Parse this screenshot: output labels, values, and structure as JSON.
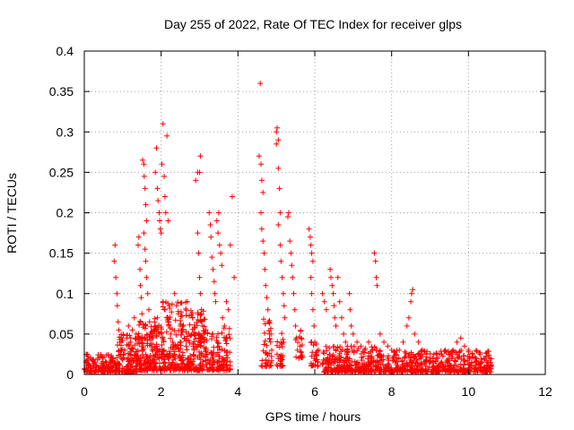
{
  "chart_data": {
    "type": "scatter",
    "title": "Day 255 of 2022, Rate Of TEC Index for receiver glps",
    "xlabel": "GPS time / hours",
    "ylabel": "ROTI / TECUs",
    "xlim": [
      0,
      12
    ],
    "ylim": [
      0,
      0.4
    ],
    "x_ticks": [
      0,
      2,
      4,
      6,
      8,
      10,
      12
    ],
    "y_ticks": [
      0,
      0.05,
      0.1,
      0.15,
      0.2,
      0.25,
      0.3,
      0.35,
      0.4
    ],
    "x_tick_labels": [
      "0",
      "2",
      "4",
      "6",
      "8",
      "10",
      "12"
    ],
    "y_tick_labels": [
      "0",
      "0.05",
      "0.1",
      "0.15",
      "0.2",
      "0.25",
      "0.3",
      "0.35",
      "0.4"
    ],
    "grid": true,
    "marker": "plus",
    "color": "#ff0000",
    "points": [
      [
        0.05,
        0.015
      ],
      [
        0.1,
        0.022
      ],
      [
        0.15,
        0.01
      ],
      [
        0.2,
        0.018
      ],
      [
        0.25,
        0.008
      ],
      [
        0.3,
        0.012
      ],
      [
        0.35,
        0.02
      ],
      [
        0.4,
        0.006
      ],
      [
        0.45,
        0.014
      ],
      [
        0.5,
        0.01
      ],
      [
        0.55,
        0.016
      ],
      [
        0.6,
        0.009
      ],
      [
        0.65,
        0.013
      ],
      [
        0.7,
        0.02
      ],
      [
        0.75,
        0.011
      ],
      [
        0.78,
        0.14
      ],
      [
        0.8,
        0.16
      ],
      [
        0.82,
        0.12
      ],
      [
        0.85,
        0.1
      ],
      [
        0.86,
        0.085
      ],
      [
        0.88,
        0.065
      ],
      [
        0.9,
        0.055
      ],
      [
        0.92,
        0.04
      ],
      [
        0.95,
        0.03
      ],
      [
        0.98,
        0.02
      ],
      [
        1.0,
        0.018
      ],
      [
        1.05,
        0.03
      ],
      [
        1.1,
        0.045
      ],
      [
        1.15,
        0.06
      ],
      [
        1.2,
        0.04
      ],
      [
        1.25,
        0.055
      ],
      [
        1.3,
        0.07
      ],
      [
        1.35,
        0.05
      ],
      [
        1.4,
        0.16
      ],
      [
        1.42,
        0.17
      ],
      [
        1.45,
        0.13
      ],
      [
        1.46,
        0.11
      ],
      [
        1.48,
        0.095
      ],
      [
        1.5,
        0.075
      ],
      [
        1.52,
        0.265
      ],
      [
        1.55,
        0.26
      ],
      [
        1.56,
        0.245
      ],
      [
        1.58,
        0.23
      ],
      [
        1.6,
        0.21
      ],
      [
        1.62,
        0.19
      ],
      [
        1.55,
        0.175
      ],
      [
        1.58,
        0.155
      ],
      [
        1.6,
        0.14
      ],
      [
        1.62,
        0.12
      ],
      [
        1.65,
        0.1
      ],
      [
        1.68,
        0.08
      ],
      [
        1.7,
        0.065
      ],
      [
        1.72,
        0.05
      ],
      [
        1.75,
        0.045
      ],
      [
        1.8,
        0.055
      ],
      [
        1.85,
        0.06
      ],
      [
        1.9,
        0.07
      ],
      [
        1.95,
        0.05
      ],
      [
        1.85,
        0.25
      ],
      [
        1.88,
        0.28
      ],
      [
        1.9,
        0.23
      ],
      [
        1.92,
        0.215
      ],
      [
        1.95,
        0.2
      ],
      [
        1.96,
        0.19
      ],
      [
        1.98,
        0.18
      ],
      [
        2.0,
        0.175
      ],
      [
        2.02,
        0.26
      ],
      [
        2.05,
        0.31
      ],
      [
        2.08,
        0.245
      ],
      [
        2.1,
        0.22
      ],
      [
        2.12,
        0.2
      ],
      [
        2.15,
        0.295
      ],
      [
        2.18,
        0.19
      ],
      [
        2.05,
        0.09
      ],
      [
        2.1,
        0.08
      ],
      [
        2.15,
        0.07
      ],
      [
        2.2,
        0.06
      ],
      [
        2.25,
        0.05
      ],
      [
        2.3,
        0.04
      ],
      [
        2.35,
        0.1
      ],
      [
        2.4,
        0.085
      ],
      [
        2.45,
        0.075
      ],
      [
        2.5,
        0.06
      ],
      [
        2.55,
        0.055
      ],
      [
        2.6,
        0.045
      ],
      [
        2.65,
        0.035
      ],
      [
        2.7,
        0.02
      ],
      [
        2.75,
        0.015
      ],
      [
        2.9,
        0.24
      ],
      [
        2.95,
        0.25
      ],
      [
        3.0,
        0.25
      ],
      [
        3.02,
        0.27
      ],
      [
        2.95,
        0.175
      ],
      [
        2.98,
        0.15
      ],
      [
        3.0,
        0.12
      ],
      [
        3.02,
        0.1
      ],
      [
        3.05,
        0.08
      ],
      [
        3.08,
        0.06
      ],
      [
        3.1,
        0.05
      ],
      [
        3.12,
        0.04
      ],
      [
        3.15,
        0.03
      ],
      [
        3.2,
        0.025
      ],
      [
        3.25,
        0.2
      ],
      [
        3.28,
        0.185
      ],
      [
        3.3,
        0.17
      ],
      [
        3.32,
        0.145
      ],
      [
        3.35,
        0.13
      ],
      [
        3.38,
        0.115
      ],
      [
        3.4,
        0.1
      ],
      [
        3.42,
        0.09
      ],
      [
        3.45,
        0.19
      ],
      [
        3.48,
        0.175
      ],
      [
        3.5,
        0.2
      ],
      [
        3.52,
        0.16
      ],
      [
        3.55,
        0.15
      ],
      [
        3.58,
        0.135
      ],
      [
        3.6,
        0.07
      ],
      [
        3.65,
        0.06
      ],
      [
        3.7,
        0.09
      ],
      [
        3.75,
        0.08
      ],
      [
        3.8,
        0.16
      ],
      [
        3.85,
        0.22
      ],
      [
        3.9,
        0.12
      ],
      [
        4.55,
        0.27
      ],
      [
        4.58,
        0.36
      ],
      [
        4.6,
        0.26
      ],
      [
        4.62,
        0.24
      ],
      [
        4.65,
        0.225
      ],
      [
        4.6,
        0.2
      ],
      [
        4.62,
        0.18
      ],
      [
        4.65,
        0.165
      ],
      [
        4.68,
        0.15
      ],
      [
        4.7,
        0.13
      ],
      [
        4.72,
        0.11
      ],
      [
        4.75,
        0.095
      ],
      [
        4.78,
        0.08
      ],
      [
        4.8,
        0.065
      ],
      [
        4.82,
        0.05
      ],
      [
        4.85,
        0.04
      ],
      [
        4.88,
        0.03
      ],
      [
        5.0,
        0.3
      ],
      [
        5.02,
        0.305
      ],
      [
        5.05,
        0.29
      ],
      [
        5.0,
        0.285
      ],
      [
        5.05,
        0.255
      ],
      [
        5.08,
        0.23
      ],
      [
        5.1,
        0.2
      ],
      [
        5.05,
        0.185
      ],
      [
        5.1,
        0.16
      ],
      [
        5.12,
        0.14
      ],
      [
        5.15,
        0.12
      ],
      [
        5.18,
        0.1
      ],
      [
        5.2,
        0.085
      ],
      [
        5.22,
        0.07
      ],
      [
        5.3,
        0.195
      ],
      [
        5.32,
        0.2
      ],
      [
        5.35,
        0.165
      ],
      [
        5.38,
        0.15
      ],
      [
        5.4,
        0.135
      ],
      [
        5.42,
        0.12
      ],
      [
        5.45,
        0.1
      ],
      [
        5.48,
        0.08
      ],
      [
        5.5,
        0.06
      ],
      [
        5.52,
        0.045
      ],
      [
        5.55,
        0.03
      ],
      [
        5.85,
        0.18
      ],
      [
        5.88,
        0.17
      ],
      [
        5.9,
        0.16
      ],
      [
        5.92,
        0.15
      ],
      [
        5.95,
        0.14
      ],
      [
        5.9,
        0.12
      ],
      [
        5.92,
        0.1
      ],
      [
        5.95,
        0.08
      ],
      [
        5.98,
        0.06
      ],
      [
        6.0,
        0.04
      ],
      [
        6.2,
        0.1
      ],
      [
        6.25,
        0.09
      ],
      [
        6.3,
        0.08
      ],
      [
        6.4,
        0.13
      ],
      [
        6.42,
        0.12
      ],
      [
        6.45,
        0.11
      ],
      [
        6.48,
        0.1
      ],
      [
        6.5,
        0.085
      ],
      [
        6.52,
        0.07
      ],
      [
        6.55,
        0.06
      ],
      [
        6.6,
        0.12
      ],
      [
        6.65,
        0.09
      ],
      [
        6.7,
        0.07
      ],
      [
        6.75,
        0.05
      ],
      [
        6.8,
        0.04
      ],
      [
        6.85,
        0.035
      ],
      [
        6.9,
        0.1
      ],
      [
        6.92,
        0.08
      ],
      [
        6.95,
        0.06
      ],
      [
        7.0,
        0.05
      ],
      [
        7.1,
        0.04
      ],
      [
        7.2,
        0.035
      ],
      [
        7.3,
        0.03
      ],
      [
        7.4,
        0.04
      ],
      [
        7.5,
        0.03
      ],
      [
        7.55,
        0.15
      ],
      [
        7.58,
        0.14
      ],
      [
        7.6,
        0.12
      ],
      [
        7.62,
        0.11
      ],
      [
        7.7,
        0.05
      ],
      [
        7.8,
        0.04
      ],
      [
        7.9,
        0.035
      ],
      [
        8.0,
        0.03
      ],
      [
        8.1,
        0.025
      ],
      [
        8.2,
        0.03
      ],
      [
        8.3,
        0.04
      ],
      [
        8.4,
        0.06
      ],
      [
        8.45,
        0.07
      ],
      [
        8.5,
        0.09
      ],
      [
        8.52,
        0.1
      ],
      [
        8.55,
        0.105
      ],
      [
        8.6,
        0.05
      ],
      [
        8.7,
        0.04
      ],
      [
        8.8,
        0.03
      ],
      [
        8.9,
        0.025
      ],
      [
        9.0,
        0.02
      ],
      [
        9.1,
        0.025
      ],
      [
        9.2,
        0.02
      ],
      [
        9.3,
        0.025
      ],
      [
        9.4,
        0.03
      ],
      [
        9.5,
        0.025
      ],
      [
        9.6,
        0.03
      ],
      [
        9.7,
        0.04
      ],
      [
        9.8,
        0.045
      ],
      [
        9.9,
        0.035
      ],
      [
        10.0,
        0.03
      ],
      [
        10.1,
        0.025
      ],
      [
        10.2,
        0.02
      ],
      [
        10.3,
        0.025
      ],
      [
        10.4,
        0.02
      ],
      [
        10.5,
        0.015
      ],
      [
        10.6,
        0.012
      ]
    ],
    "dense_bands": [
      {
        "x": [
          0.0,
          0.8
        ],
        "y": [
          0.003,
          0.025
        ],
        "count": 130
      },
      {
        "x": [
          0.8,
          1.4
        ],
        "y": [
          0.003,
          0.05
        ],
        "count": 140
      },
      {
        "x": [
          1.4,
          2.0
        ],
        "y": [
          0.005,
          0.07
        ],
        "count": 170
      },
      {
        "x": [
          2.0,
          2.7
        ],
        "y": [
          0.005,
          0.09
        ],
        "count": 180
      },
      {
        "x": [
          2.7,
          3.2
        ],
        "y": [
          0.005,
          0.08
        ],
        "count": 140
      },
      {
        "x": [
          3.2,
          3.8
        ],
        "y": [
          0.005,
          0.06
        ],
        "count": 110
      },
      {
        "x": [
          4.6,
          4.9
        ],
        "y": [
          0.01,
          0.07
        ],
        "count": 40
      },
      {
        "x": [
          5.0,
          5.2
        ],
        "y": [
          0.01,
          0.06
        ],
        "count": 30
      },
      {
        "x": [
          5.5,
          5.7
        ],
        "y": [
          0.02,
          0.06
        ],
        "count": 20
      },
      {
        "x": [
          5.9,
          6.1
        ],
        "y": [
          0.01,
          0.05
        ],
        "count": 30
      },
      {
        "x": [
          6.2,
          7.6
        ],
        "y": [
          0.003,
          0.035
        ],
        "count": 260
      },
      {
        "x": [
          7.6,
          9.0
        ],
        "y": [
          0.003,
          0.03
        ],
        "count": 230
      },
      {
        "x": [
          9.0,
          10.6
        ],
        "y": [
          0.003,
          0.03
        ],
        "count": 260
      }
    ]
  }
}
